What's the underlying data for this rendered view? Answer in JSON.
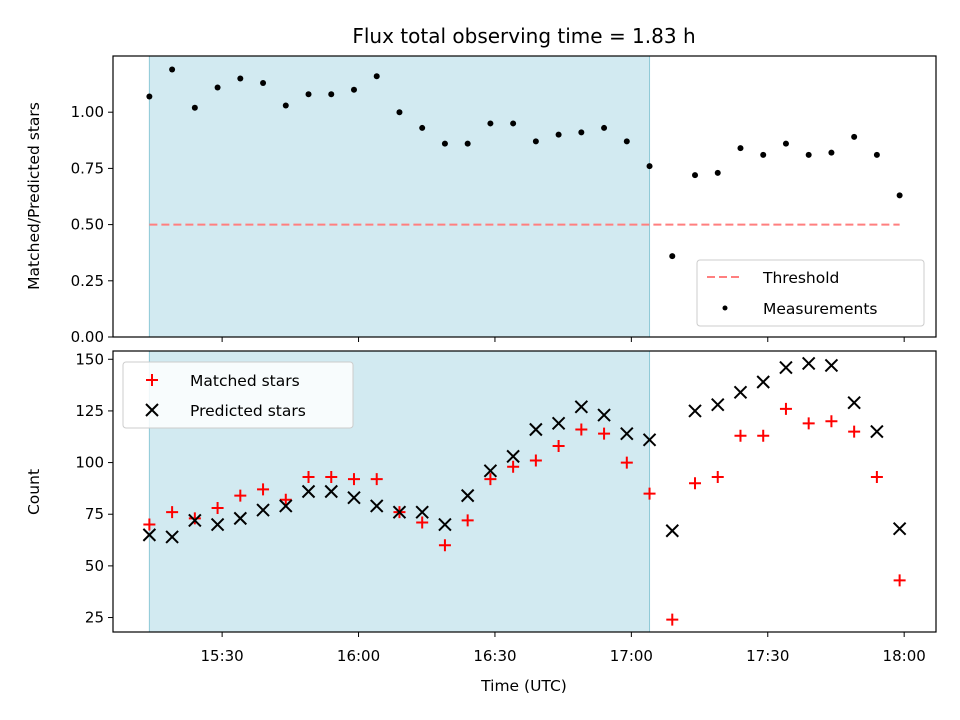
{
  "figure": {
    "title": "Flux total observing time = 1.83 h",
    "xlabel": "Time (UTC)",
    "x_ticks": [
      "15:30",
      "16:00",
      "16:30",
      "17:00",
      "17:30",
      "18:00"
    ],
    "shaded_interval": {
      "start": "15:14",
      "end": "17:04",
      "color": "#add8e6"
    }
  },
  "chart_data": [
    {
      "type": "scatter",
      "panel": "top",
      "ylabel": "Matched/Predicted stars",
      "ylim": [
        0,
        1.25
      ],
      "y_ticks": [
        "0.00",
        "0.25",
        "0.50",
        "0.75",
        "1.00"
      ],
      "legend_position": "lower right",
      "threshold": {
        "name": "Threshold",
        "value": 0.5,
        "x_start": "15:14",
        "x_end": "17:59",
        "color": "#ff7f7f"
      },
      "series": [
        {
          "name": "Measurements",
          "color": "#000000",
          "marker": "dot",
          "x": [
            "15:14",
            "15:19",
            "15:24",
            "15:29",
            "15:34",
            "15:39",
            "15:44",
            "15:49",
            "15:54",
            "15:59",
            "16:04",
            "16:09",
            "16:14",
            "16:19",
            "16:24",
            "16:29",
            "16:34",
            "16:39",
            "16:44",
            "16:49",
            "16:54",
            "16:59",
            "17:04",
            "17:09",
            "17:14",
            "17:19",
            "17:24",
            "17:29",
            "17:34",
            "17:39",
            "17:44",
            "17:49",
            "17:54",
            "17:59"
          ],
          "y": [
            1.07,
            1.19,
            1.02,
            1.11,
            1.15,
            1.13,
            1.03,
            1.08,
            1.08,
            1.1,
            1.16,
            1.0,
            0.93,
            0.86,
            0.86,
            0.95,
            0.95,
            0.87,
            0.9,
            0.91,
            0.93,
            0.87,
            0.76,
            0.36,
            0.72,
            0.73,
            0.84,
            0.81,
            0.86,
            0.81,
            0.82,
            0.89,
            0.81,
            0.63
          ]
        }
      ]
    },
    {
      "type": "scatter",
      "panel": "bottom",
      "ylabel": "Count",
      "ylim": [
        18,
        154
      ],
      "y_ticks": [
        "25",
        "50",
        "75",
        "100",
        "125",
        "150"
      ],
      "legend_position": "upper left",
      "series": [
        {
          "name": "Matched stars",
          "color": "#ff0000",
          "marker": "plus",
          "x": [
            "15:14",
            "15:19",
            "15:24",
            "15:29",
            "15:34",
            "15:39",
            "15:44",
            "15:49",
            "15:54",
            "15:59",
            "16:04",
            "16:09",
            "16:14",
            "16:19",
            "16:24",
            "16:29",
            "16:34",
            "16:39",
            "16:44",
            "16:49",
            "16:54",
            "16:59",
            "17:04",
            "17:09",
            "17:14",
            "17:19",
            "17:24",
            "17:29",
            "17:34",
            "17:39",
            "17:44",
            "17:49",
            "17:54",
            "17:59"
          ],
          "y": [
            70,
            76,
            73,
            78,
            84,
            87,
            82,
            93,
            93,
            92,
            92,
            76,
            71,
            60,
            72,
            92,
            98,
            101,
            108,
            116,
            114,
            100,
            85,
            24,
            90,
            93,
            113,
            113,
            126,
            119,
            120,
            115,
            93,
            43
          ]
        },
        {
          "name": "Predicted stars",
          "color": "#000000",
          "marker": "x",
          "x": [
            "15:14",
            "15:19",
            "15:24",
            "15:29",
            "15:34",
            "15:39",
            "15:44",
            "15:49",
            "15:54",
            "15:59",
            "16:04",
            "16:09",
            "16:14",
            "16:19",
            "16:24",
            "16:29",
            "16:34",
            "16:39",
            "16:44",
            "16:49",
            "16:54",
            "16:59",
            "17:04",
            "17:09",
            "17:14",
            "17:19",
            "17:24",
            "17:29",
            "17:34",
            "17:39",
            "17:44",
            "17:49",
            "17:54",
            "17:59"
          ],
          "y": [
            65,
            64,
            72,
            70,
            73,
            77,
            79,
            86,
            86,
            83,
            79,
            76,
            76,
            70,
            84,
            96,
            103,
            116,
            119,
            127,
            123,
            114,
            111,
            67,
            125,
            128,
            134,
            139,
            146,
            148,
            147,
            129,
            115,
            68
          ]
        }
      ]
    }
  ]
}
